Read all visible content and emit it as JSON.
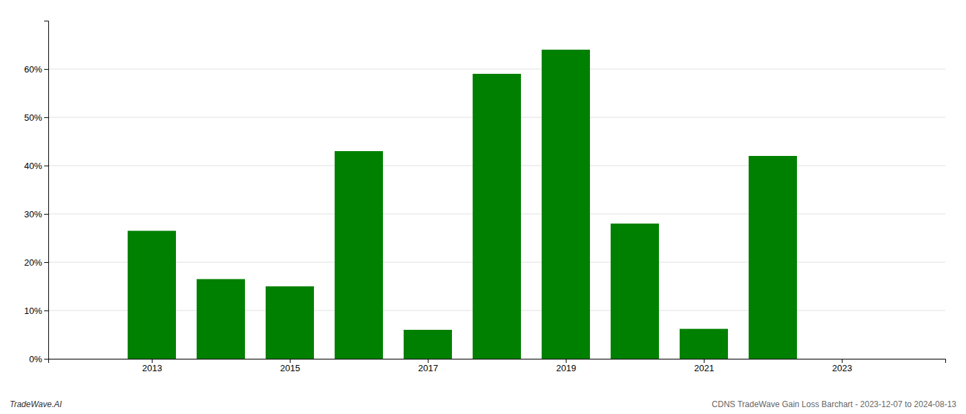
{
  "chart_data": {
    "type": "bar",
    "x": [
      2013,
      2014,
      2015,
      2016,
      2017,
      2018,
      2019,
      2020,
      2021,
      2022
    ],
    "values": [
      0.265,
      0.165,
      0.15,
      0.43,
      0.06,
      0.59,
      0.64,
      0.28,
      0.062,
      0.42
    ],
    "color": "#008000",
    "xlim": [
      2011.5,
      2024.5
    ],
    "xticks": [
      2013,
      2015,
      2017,
      2019,
      2021,
      2023
    ],
    "ylim": [
      0,
      0.7
    ],
    "yticks": [
      {
        "value": 0.0,
        "label": "0%"
      },
      {
        "value": 0.1,
        "label": "10%"
      },
      {
        "value": 0.2,
        "label": "20%"
      },
      {
        "value": 0.3,
        "label": "30%"
      },
      {
        "value": 0.4,
        "label": "40%"
      },
      {
        "value": 0.5,
        "label": "50%"
      },
      {
        "value": 0.6,
        "label": "60%"
      }
    ],
    "grid": true,
    "annotations": [
      "TradeWave.AI",
      "CDNS TradeWave Gain Loss Barchart - 2023-12-07 to 2024-08-13"
    ]
  }
}
